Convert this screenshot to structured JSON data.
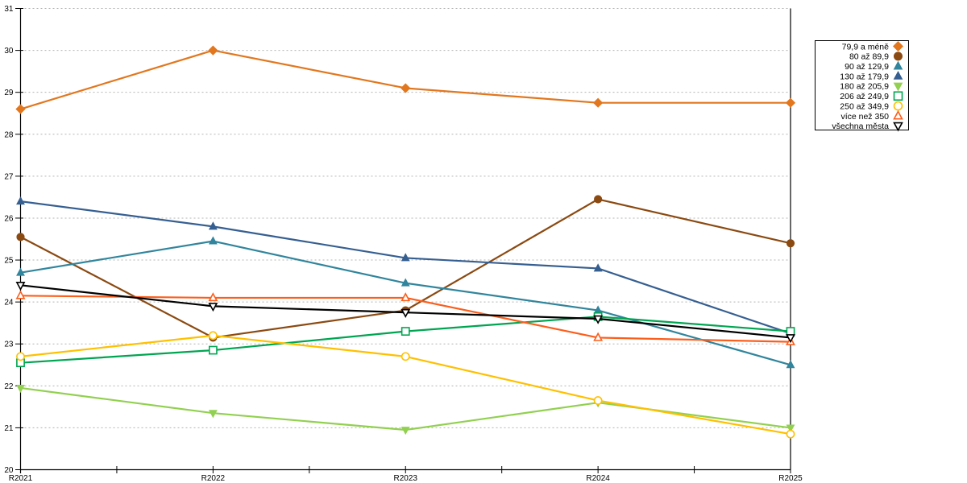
{
  "chart_data": {
    "type": "line",
    "title": "",
    "xlabel": "",
    "ylabel": "",
    "categories": [
      "R2021",
      "R2022",
      "R2023",
      "R2024",
      "R2025"
    ],
    "ylim": [
      20,
      31
    ],
    "yticks": [
      20,
      21,
      22,
      23,
      24,
      25,
      26,
      27,
      28,
      29,
      30,
      31
    ],
    "grid": "horizontal-dashed",
    "grid_color": "#b3b3b3",
    "axis_color": "#000000",
    "legend_position": "right-boxed",
    "series": [
      {
        "name": "79,9 a méně",
        "color": "#e2771e",
        "marker": "diamond",
        "marker_style": "filled",
        "values": [
          28.6,
          30.0,
          29.1,
          28.75,
          28.75
        ]
      },
      {
        "name": "80 až 89,9",
        "color": "#8b4a12",
        "marker": "circle",
        "marker_style": "filled",
        "values": [
          25.55,
          23.15,
          23.8,
          26.45,
          25.4
        ]
      },
      {
        "name": "90 až 129,9",
        "color": "#31859c",
        "marker": "triangle-up",
        "marker_style": "filled",
        "values": [
          24.7,
          25.45,
          24.45,
          23.8,
          22.5
        ]
      },
      {
        "name": "130 až 179,9",
        "color": "#365f91",
        "marker": "triangle-up",
        "marker_style": "filled",
        "values": [
          26.4,
          25.8,
          25.05,
          24.8,
          23.25
        ]
      },
      {
        "name": "180 až 205,9",
        "color": "#92d050",
        "marker": "triangle-down",
        "marker_style": "filled",
        "values": [
          21.95,
          21.35,
          20.95,
          21.6,
          21.0
        ]
      },
      {
        "name": "206 až 249,9",
        "color": "#00a551",
        "marker": "square",
        "marker_style": "open",
        "values": [
          22.55,
          22.85,
          23.3,
          23.65,
          23.3
        ]
      },
      {
        "name": "250 až 349,9",
        "color": "#ffc000",
        "marker": "circle",
        "marker_style": "open",
        "values": [
          22.7,
          23.2,
          22.7,
          21.65,
          20.85
        ]
      },
      {
        "name": "více než 350",
        "color": "#fc5e1c",
        "marker": "triangle-up",
        "marker_style": "open",
        "values": [
          24.15,
          24.1,
          24.1,
          23.15,
          23.05
        ]
      },
      {
        "name": "všechna města",
        "color": "#000000",
        "marker": "triangle-down",
        "marker_style": "open",
        "values": [
          24.4,
          23.9,
          23.75,
          23.6,
          23.15
        ]
      }
    ]
  }
}
